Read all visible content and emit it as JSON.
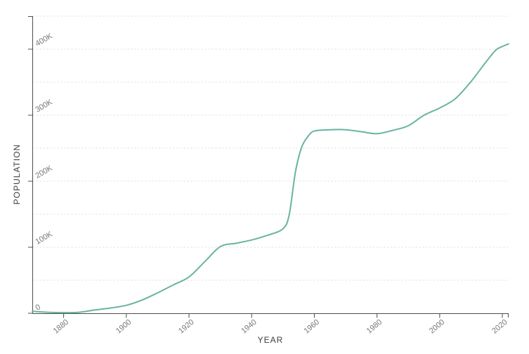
{
  "page": {
    "background": "#ffffff"
  },
  "chart_data": {
    "type": "line",
    "title": "",
    "xlabel": "YEAR",
    "ylabel": "POPULATION",
    "x_domain": [
      1870,
      2022
    ],
    "y_domain": [
      0,
      450000
    ],
    "x_ticks": [
      {
        "value": 1880,
        "label": "1880"
      },
      {
        "value": 1900,
        "label": "1900"
      },
      {
        "value": 1920,
        "label": "1920"
      },
      {
        "value": 1940,
        "label": "1940"
      },
      {
        "value": 1960,
        "label": "1960"
      },
      {
        "value": 1980,
        "label": "1980"
      },
      {
        "value": 2000,
        "label": "2000"
      },
      {
        "value": 2020,
        "label": "2020"
      }
    ],
    "y_ticks": [
      {
        "value": 0,
        "label": "0"
      },
      {
        "value": 100000,
        "label": "100K"
      },
      {
        "value": 200000,
        "label": "200K"
      },
      {
        "value": 300000,
        "label": "300K"
      },
      {
        "value": 400000,
        "label": "400K"
      }
    ],
    "grid": {
      "show": true,
      "step": 50000,
      "style": "dashed",
      "orientation": "horizontal"
    },
    "legend": {
      "show": false
    },
    "colors": {
      "line": "#69b3a2",
      "grid": "#dddddd",
      "axis": "#4d4d4d",
      "tick_label": "#777777",
      "axis_title": "#3d3d3d"
    },
    "series": [
      {
        "name": "population",
        "points": [
          [
            1870,
            3000
          ],
          [
            1875,
            1500
          ],
          [
            1880,
            1000
          ],
          [
            1885,
            1500
          ],
          [
            1890,
            5000
          ],
          [
            1895,
            8000
          ],
          [
            1900,
            12000
          ],
          [
            1905,
            20000
          ],
          [
            1910,
            31000
          ],
          [
            1915,
            43000
          ],
          [
            1920,
            55000
          ],
          [
            1925,
            78000
          ],
          [
            1930,
            101000
          ],
          [
            1935,
            106000
          ],
          [
            1940,
            111000
          ],
          [
            1945,
            118000
          ],
          [
            1950,
            128000
          ],
          [
            1952,
            150000
          ],
          [
            1954,
            215000
          ],
          [
            1956,
            252000
          ],
          [
            1958,
            268000
          ],
          [
            1960,
            276000
          ],
          [
            1965,
            278000
          ],
          [
            1970,
            278000
          ],
          [
            1975,
            275000
          ],
          [
            1980,
            272000
          ],
          [
            1985,
            277000
          ],
          [
            1990,
            284000
          ],
          [
            1995,
            300000
          ],
          [
            2000,
            311000
          ],
          [
            2005,
            325000
          ],
          [
            2010,
            351000
          ],
          [
            2015,
            382000
          ],
          [
            2018,
            399000
          ],
          [
            2020,
            404000
          ],
          [
            2022,
            408000
          ]
        ]
      }
    ]
  }
}
